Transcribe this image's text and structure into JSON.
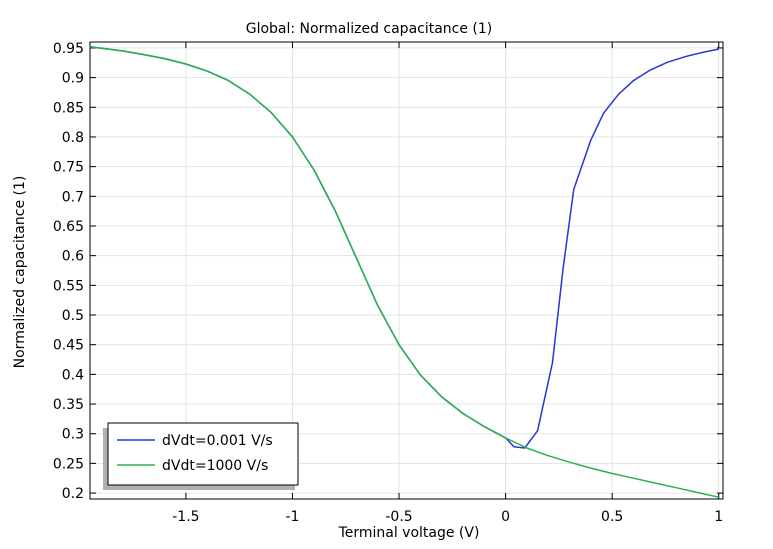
{
  "chart_data": {
    "type": "line",
    "title": "Global: Normalized capacitance (1)",
    "xlabel": "Terminal voltage (V)",
    "ylabel": "Normalized capacitance (1)",
    "xlim": [
      -1.95,
      1.02
    ],
    "ylim": [
      0.19,
      0.96
    ],
    "xticks": [
      -1.5,
      -1,
      -0.5,
      0,
      0.5,
      1
    ],
    "xtick_labels": [
      "-1.5",
      "-1",
      "-0.5",
      "0",
      "0.5",
      "1"
    ],
    "yticks": [
      0.2,
      0.25,
      0.3,
      0.35,
      0.4,
      0.45,
      0.5,
      0.55,
      0.6,
      0.65,
      0.7,
      0.75,
      0.8,
      0.85,
      0.9,
      0.95
    ],
    "ytick_labels": [
      "0.2",
      "0.25",
      "0.3",
      "0.35",
      "0.4",
      "0.45",
      "0.5",
      "0.55",
      "0.6",
      "0.65",
      "0.7",
      "0.75",
      "0.8",
      "0.85",
      "0.9",
      "0.95"
    ],
    "grid": true,
    "legend_position": "bottom-left",
    "series": [
      {
        "name": "dVdt=0.001 V/s",
        "color": "#2535d8",
        "x": [
          -1.95,
          -1.8,
          -1.7,
          -1.6,
          -1.5,
          -1.4,
          -1.3,
          -1.2,
          -1.1,
          -1.0,
          -0.9,
          -0.8,
          -0.7,
          -0.6,
          -0.5,
          -0.4,
          -0.3,
          -0.2,
          -0.1,
          0.0,
          0.04,
          0.09,
          0.15,
          0.22,
          0.27,
          0.32,
          0.4,
          0.46,
          0.53,
          0.6,
          0.68,
          0.76,
          0.85,
          0.93,
          1.0
        ],
        "y": [
          0.952,
          0.945,
          0.939,
          0.932,
          0.923,
          0.911,
          0.895,
          0.872,
          0.841,
          0.8,
          0.745,
          0.676,
          0.596,
          0.516,
          0.45,
          0.399,
          0.362,
          0.334,
          0.312,
          0.293,
          0.278,
          0.276,
          0.305,
          0.42,
          0.58,
          0.712,
          0.795,
          0.84,
          0.872,
          0.895,
          0.913,
          0.926,
          0.936,
          0.943,
          0.948
        ]
      },
      {
        "name": "dVdt=1000 V/s",
        "color": "#2bb24a",
        "x": [
          -1.95,
          -1.8,
          -1.7,
          -1.6,
          -1.5,
          -1.4,
          -1.3,
          -1.2,
          -1.1,
          -1.0,
          -0.9,
          -0.8,
          -0.7,
          -0.6,
          -0.5,
          -0.4,
          -0.3,
          -0.2,
          -0.1,
          0.0,
          0.1,
          0.2,
          0.3,
          0.4,
          0.5,
          0.6,
          0.7,
          0.8,
          0.9,
          1.0
        ],
        "y": [
          0.952,
          0.945,
          0.939,
          0.932,
          0.923,
          0.911,
          0.895,
          0.872,
          0.841,
          0.8,
          0.745,
          0.676,
          0.596,
          0.516,
          0.45,
          0.399,
          0.362,
          0.334,
          0.312,
          0.293,
          0.276,
          0.263,
          0.252,
          0.242,
          0.233,
          0.225,
          0.217,
          0.209,
          0.201,
          0.193
        ]
      }
    ]
  }
}
